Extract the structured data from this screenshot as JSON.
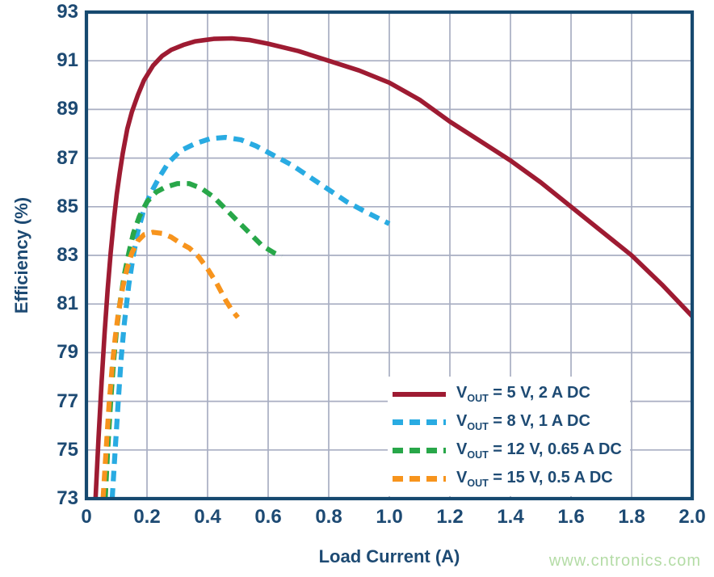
{
  "chart_data": {
    "type": "line",
    "title": "",
    "xlabel": "Load Current (A)",
    "ylabel": "Efficiency (%)",
    "xlim": [
      0,
      2.0
    ],
    "ylim": [
      73,
      93
    ],
    "grid": true,
    "legend_position": "lower-right",
    "xticks": [
      0,
      0.2,
      0.4,
      0.6,
      0.8,
      1.0,
      1.2,
      1.4,
      1.6,
      1.8,
      2.0
    ],
    "x_tick_labels": [
      "0",
      "0.2",
      "0.4",
      "0.6",
      "0.8",
      "1.0",
      "1.2",
      "1.4",
      "1.6",
      "1.8",
      "2.0"
    ],
    "yticks": [
      93,
      91,
      89,
      87,
      85,
      83,
      81,
      79,
      77,
      75,
      73
    ],
    "y_tick_labels": [
      "93",
      "91",
      "89",
      "87",
      "85",
      "83",
      "81",
      "79",
      "77",
      "75",
      "73"
    ],
    "series": [
      {
        "id": "vout-5v",
        "name": "VOUT = 5 V, 2 A DC",
        "color": "#9e1b32",
        "style": "solid",
        "points": [
          [
            0.03,
            73
          ],
          [
            0.04,
            75.5
          ],
          [
            0.05,
            77.8
          ],
          [
            0.06,
            79.8
          ],
          [
            0.07,
            81.6
          ],
          [
            0.08,
            83.1
          ],
          [
            0.09,
            84.4
          ],
          [
            0.1,
            85.5
          ],
          [
            0.11,
            86.4
          ],
          [
            0.12,
            87.2
          ],
          [
            0.135,
            88.2
          ],
          [
            0.15,
            88.9
          ],
          [
            0.17,
            89.6
          ],
          [
            0.19,
            90.2
          ],
          [
            0.22,
            90.8
          ],
          [
            0.25,
            91.2
          ],
          [
            0.28,
            91.45
          ],
          [
            0.32,
            91.65
          ],
          [
            0.36,
            91.8
          ],
          [
            0.42,
            91.9
          ],
          [
            0.48,
            91.92
          ],
          [
            0.54,
            91.85
          ],
          [
            0.6,
            91.7
          ],
          [
            0.7,
            91.4
          ],
          [
            0.8,
            91.0
          ],
          [
            0.9,
            90.6
          ],
          [
            1.0,
            90.1
          ],
          [
            1.1,
            89.4
          ],
          [
            1.2,
            88.5
          ],
          [
            1.3,
            87.7
          ],
          [
            1.4,
            86.9
          ],
          [
            1.5,
            86.0
          ],
          [
            1.6,
            85.0
          ],
          [
            1.7,
            84.0
          ],
          [
            1.8,
            83.0
          ],
          [
            1.9,
            81.8
          ],
          [
            2.0,
            80.5
          ]
        ]
      },
      {
        "id": "vout-8v",
        "name": "VOUT = 8 V, 1 A DC",
        "color": "#29abe2",
        "style": "dashed",
        "points": [
          [
            0.085,
            73
          ],
          [
            0.095,
            75
          ],
          [
            0.105,
            77
          ],
          [
            0.115,
            78.8
          ],
          [
            0.125,
            80.2
          ],
          [
            0.14,
            81.8
          ],
          [
            0.155,
            83.0
          ],
          [
            0.17,
            84.0
          ],
          [
            0.19,
            84.9
          ],
          [
            0.21,
            85.5
          ],
          [
            0.24,
            86.2
          ],
          [
            0.27,
            86.8
          ],
          [
            0.31,
            87.3
          ],
          [
            0.36,
            87.6
          ],
          [
            0.41,
            87.8
          ],
          [
            0.46,
            87.85
          ],
          [
            0.51,
            87.75
          ],
          [
            0.56,
            87.5
          ],
          [
            0.62,
            87.1
          ],
          [
            0.68,
            86.7
          ],
          [
            0.74,
            86.2
          ],
          [
            0.8,
            85.7
          ],
          [
            0.86,
            85.2
          ],
          [
            0.92,
            84.8
          ],
          [
            1.0,
            84.3
          ]
        ]
      },
      {
        "id": "vout-12v",
        "name": "VOUT = 12 V, 0.65 A DC",
        "color": "#28a749",
        "style": "dashed",
        "points": [
          [
            0.062,
            73
          ],
          [
            0.07,
            75
          ],
          [
            0.08,
            77
          ],
          [
            0.09,
            78.7
          ],
          [
            0.1,
            80.0
          ],
          [
            0.11,
            81.0
          ],
          [
            0.125,
            82.2
          ],
          [
            0.14,
            83.1
          ],
          [
            0.155,
            83.9
          ],
          [
            0.175,
            84.6
          ],
          [
            0.2,
            85.2
          ],
          [
            0.23,
            85.6
          ],
          [
            0.26,
            85.8
          ],
          [
            0.3,
            85.95
          ],
          [
            0.34,
            85.95
          ],
          [
            0.38,
            85.75
          ],
          [
            0.42,
            85.4
          ],
          [
            0.46,
            84.9
          ],
          [
            0.5,
            84.4
          ],
          [
            0.54,
            83.9
          ],
          [
            0.58,
            83.4
          ],
          [
            0.62,
            83.1
          ],
          [
            0.645,
            82.95
          ]
        ]
      },
      {
        "id": "vout-15v",
        "name": "VOUT = 15 V, 0.5 A DC",
        "color": "#f7941d",
        "style": "dashed",
        "points": [
          [
            0.055,
            73
          ],
          [
            0.065,
            75
          ],
          [
            0.075,
            76.9
          ],
          [
            0.085,
            78.4
          ],
          [
            0.095,
            79.6
          ],
          [
            0.105,
            80.6
          ],
          [
            0.12,
            81.7
          ],
          [
            0.135,
            82.5
          ],
          [
            0.15,
            83.1
          ],
          [
            0.17,
            83.6
          ],
          [
            0.19,
            83.85
          ],
          [
            0.22,
            83.95
          ],
          [
            0.25,
            83.9
          ],
          [
            0.28,
            83.75
          ],
          [
            0.31,
            83.5
          ],
          [
            0.34,
            83.3
          ],
          [
            0.37,
            82.95
          ],
          [
            0.4,
            82.45
          ],
          [
            0.43,
            81.85
          ],
          [
            0.46,
            81.15
          ],
          [
            0.48,
            80.75
          ],
          [
            0.5,
            80.45
          ]
        ]
      }
    ]
  },
  "axes": {
    "x_label": "Load Current (A)",
    "y_label": "Efficiency (%)"
  },
  "legend": {
    "items": [
      {
        "var": "V",
        "sub": "OUT",
        "rest": " = 5 V, 2 A DC",
        "series": "vout-5v"
      },
      {
        "var": "V",
        "sub": "OUT",
        "rest": " = 8 V, 1 A DC",
        "series": "vout-8v"
      },
      {
        "var": "V",
        "sub": "OUT",
        "rest": " = 12 V, 0.65 A DC",
        "series": "vout-12v"
      },
      {
        "var": "V",
        "sub": "OUT",
        "rest": " = 15 V, 0.5 A DC",
        "series": "vout-15v"
      }
    ]
  },
  "watermark": {
    "text": "www.cntronics.com"
  },
  "colors": {
    "navy": "#1d4a73",
    "plot_border": "#16496f",
    "gridline": "#a8aec2",
    "watermark": "#b4dca6",
    "background": "#ffffff"
  }
}
